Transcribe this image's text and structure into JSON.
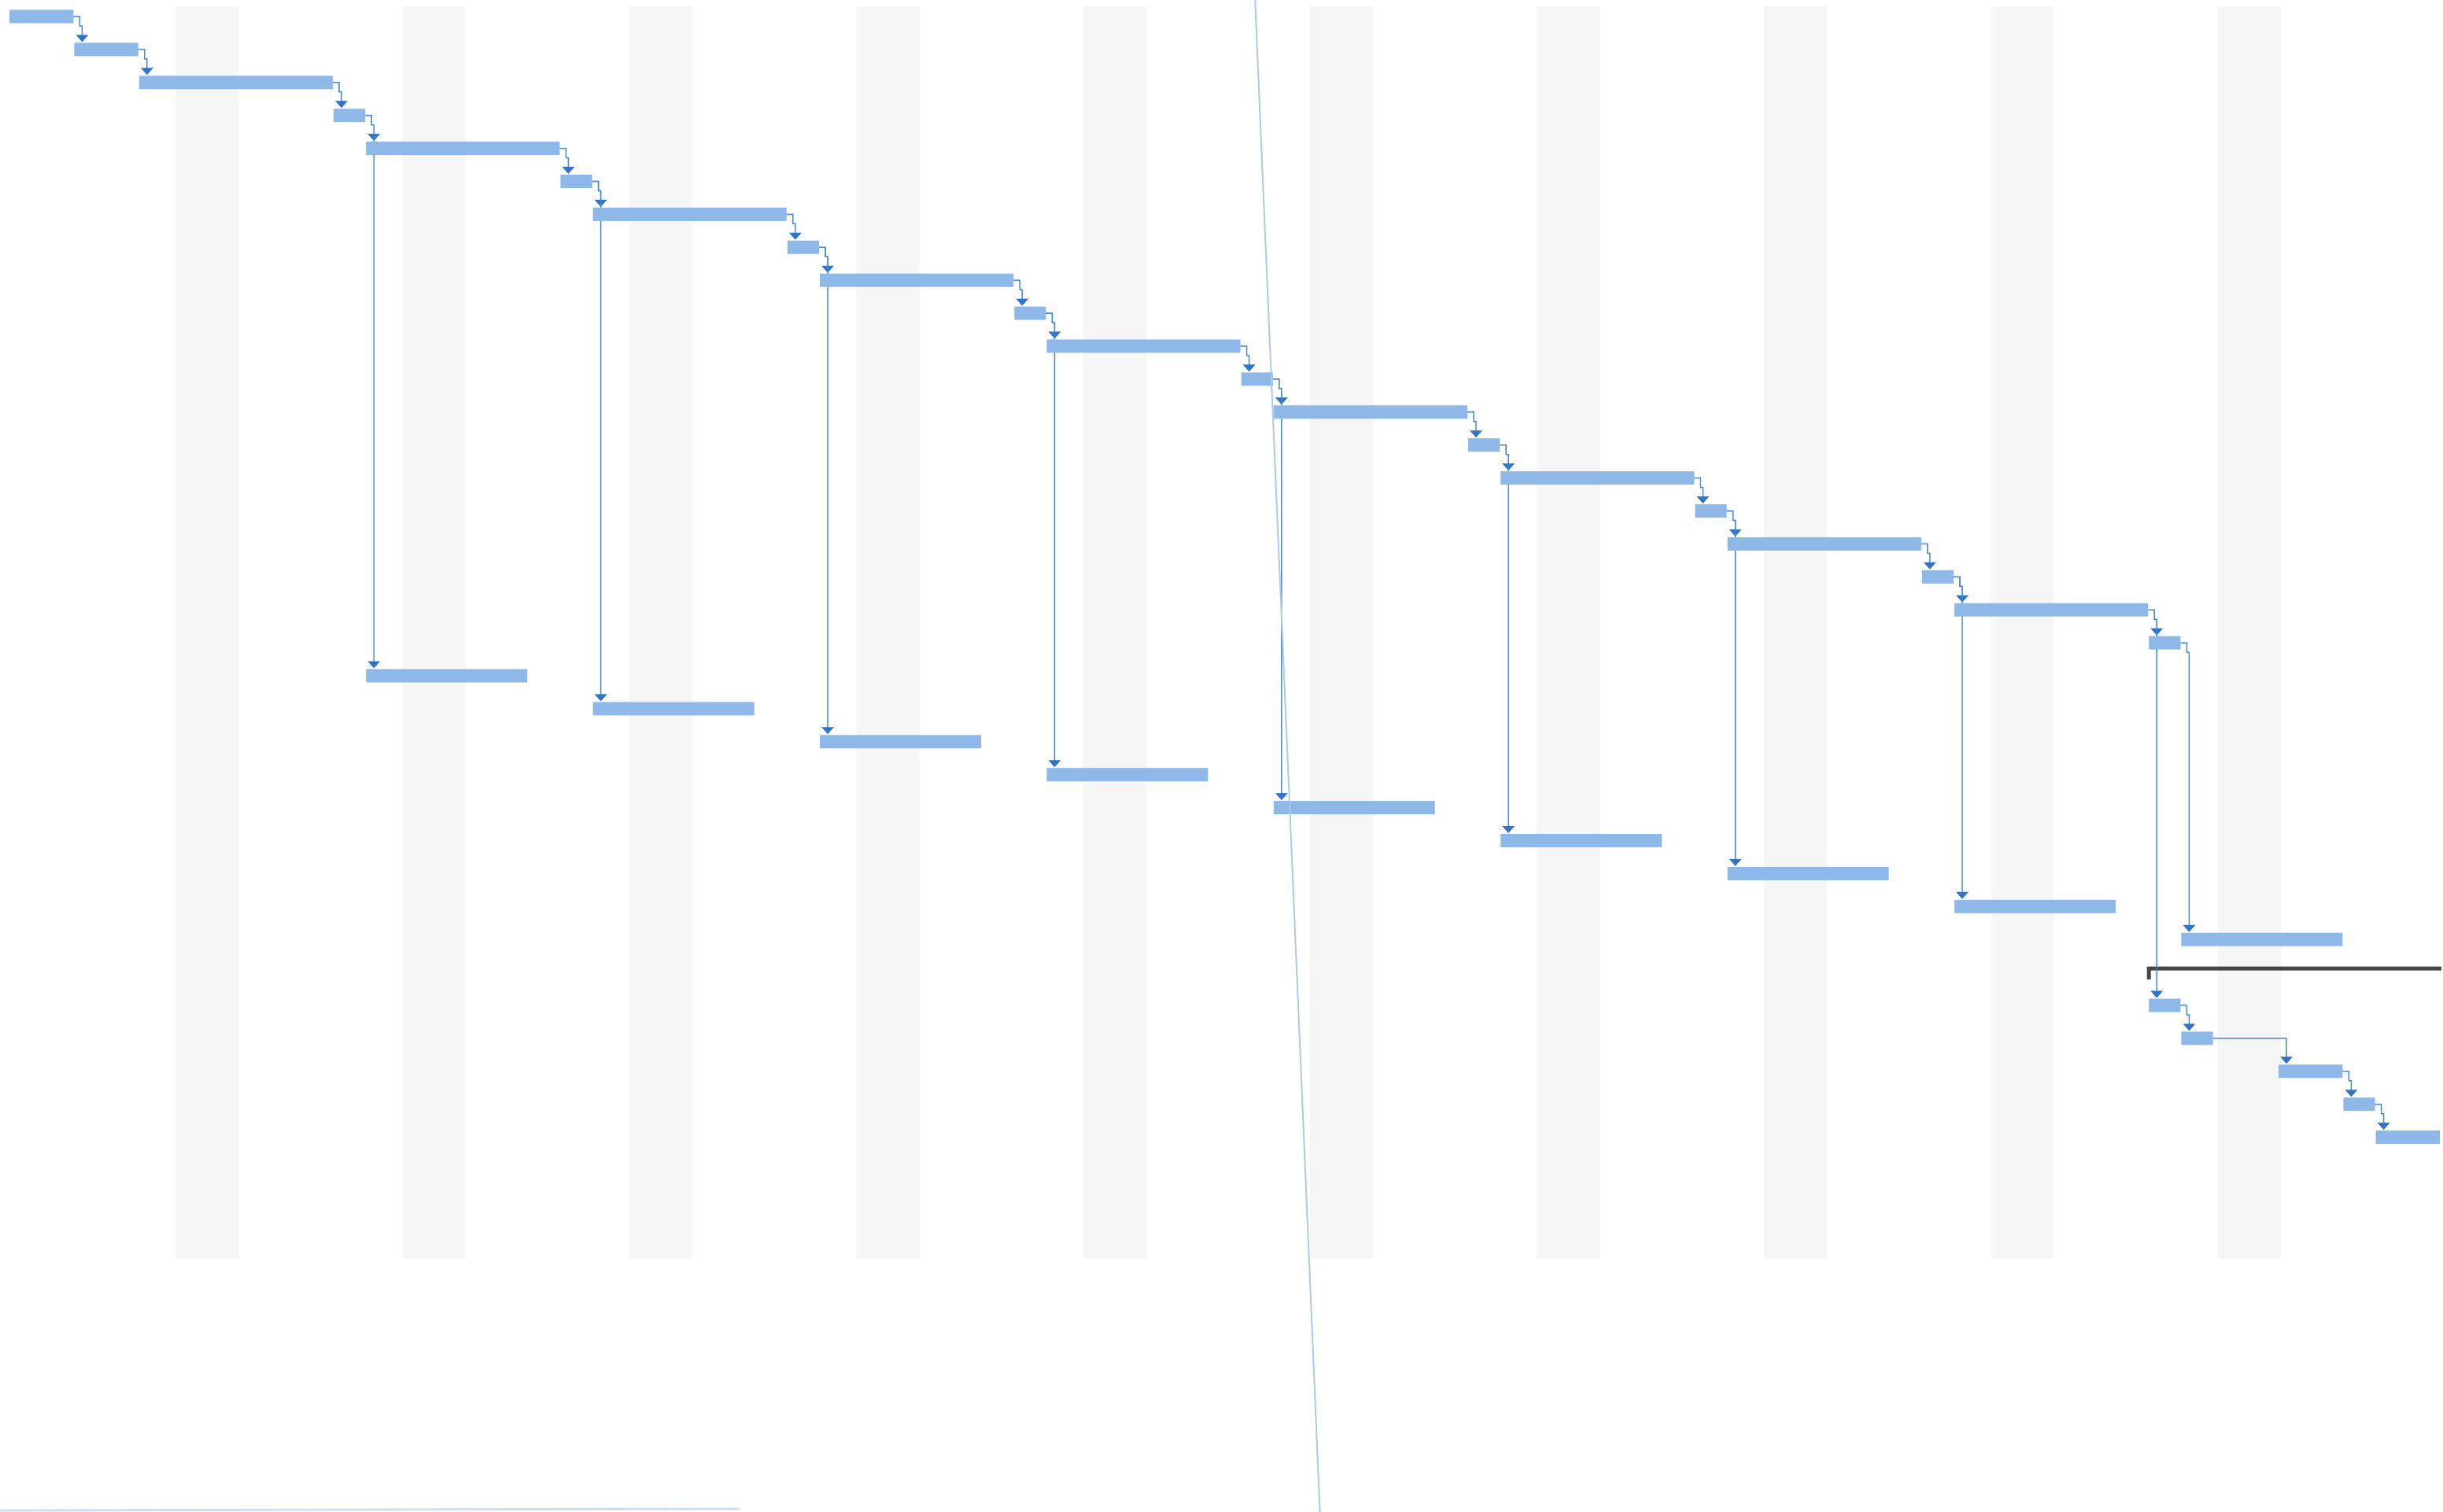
{
  "chart_data": {
    "type": "gantt",
    "title": "",
    "x_unit": "day",
    "time_axis": [
      0,
      77
    ],
    "weekend_bands": [
      5,
      12,
      19,
      26,
      33,
      40,
      47,
      54,
      61,
      68
    ],
    "today_line": [
      38.5,
      40.5
    ],
    "colors": {
      "bar": "#8db8e8",
      "link": "#3f86d5",
      "arrow": "#2f74c6",
      "weekend": "#f6f6f6",
      "today": "#a8cbe8",
      "summary": "#454545",
      "background": "#ffffff"
    },
    "tasks": [
      {
        "row": 0,
        "start": 0,
        "end": 2
      },
      {
        "row": 1,
        "start": 2,
        "end": 4
      },
      {
        "row": 2,
        "start": 4,
        "end": 10
      },
      {
        "row": 3,
        "start": 10,
        "end": 11
      },
      {
        "row": 4,
        "start": 11,
        "end": 17
      },
      {
        "row": 5,
        "start": 17,
        "end": 18
      },
      {
        "row": 6,
        "start": 18,
        "end": 24
      },
      {
        "row": 7,
        "start": 24,
        "end": 25
      },
      {
        "row": 8,
        "start": 25,
        "end": 31
      },
      {
        "row": 9,
        "start": 31,
        "end": 32
      },
      {
        "row": 10,
        "start": 32,
        "end": 38
      },
      {
        "row": 11,
        "start": 38,
        "end": 39
      },
      {
        "row": 12,
        "start": 39,
        "end": 45
      },
      {
        "row": 13,
        "start": 45,
        "end": 46
      },
      {
        "row": 14,
        "start": 46,
        "end": 52
      },
      {
        "row": 15,
        "start": 52,
        "end": 53
      },
      {
        "row": 16,
        "start": 53,
        "end": 59
      },
      {
        "row": 17,
        "start": 59,
        "end": 60
      },
      {
        "row": 18,
        "start": 60,
        "end": 66
      },
      {
        "row": 19,
        "start": 66,
        "end": 67
      },
      {
        "row": 20,
        "start": 11,
        "end": 16
      },
      {
        "row": 21,
        "start": 18,
        "end": 23
      },
      {
        "row": 22,
        "start": 25,
        "end": 30
      },
      {
        "row": 23,
        "start": 32,
        "end": 37
      },
      {
        "row": 24,
        "start": 39,
        "end": 44
      },
      {
        "row": 25,
        "start": 46,
        "end": 51
      },
      {
        "row": 26,
        "start": 53,
        "end": 58
      },
      {
        "row": 27,
        "start": 60,
        "end": 65
      },
      {
        "row": 28,
        "start": 67,
        "end": 72
      },
      {
        "row": 30,
        "start": 66,
        "end": 67
      },
      {
        "row": 31,
        "start": 67,
        "end": 68
      },
      {
        "row": 32,
        "start": 70,
        "end": 72
      },
      {
        "row": 33,
        "start": 72,
        "end": 73
      },
      {
        "row": 34,
        "start": 73,
        "end": 75
      }
    ],
    "summaries": [
      {
        "row": 29,
        "start": 66,
        "end": 75.2
      }
    ],
    "links": [
      {
        "from": 0,
        "to": 1
      },
      {
        "from": 1,
        "to": 2
      },
      {
        "from": 2,
        "to": 3
      },
      {
        "from": 3,
        "to": 4
      },
      {
        "from": 4,
        "to": 5
      },
      {
        "from": 5,
        "to": 6
      },
      {
        "from": 6,
        "to": 7
      },
      {
        "from": 7,
        "to": 8
      },
      {
        "from": 8,
        "to": 9
      },
      {
        "from": 9,
        "to": 10
      },
      {
        "from": 10,
        "to": 11
      },
      {
        "from": 11,
        "to": 12
      },
      {
        "from": 12,
        "to": 13
      },
      {
        "from": 13,
        "to": 14
      },
      {
        "from": 14,
        "to": 15
      },
      {
        "from": 15,
        "to": 16
      },
      {
        "from": 16,
        "to": 17
      },
      {
        "from": 17,
        "to": 18
      },
      {
        "from": 18,
        "to": 19
      },
      {
        "from": 3,
        "to": 20
      },
      {
        "from": 5,
        "to": 21
      },
      {
        "from": 7,
        "to": 22
      },
      {
        "from": 9,
        "to": 23
      },
      {
        "from": 11,
        "to": 24
      },
      {
        "from": 13,
        "to": 25
      },
      {
        "from": 15,
        "to": 26
      },
      {
        "from": 17,
        "to": 27
      },
      {
        "from": 19,
        "to": 28
      },
      {
        "from": 18,
        "to": 30
      },
      {
        "from": 30,
        "to": 31
      },
      {
        "from": 31,
        "to": 32
      },
      {
        "from": 32,
        "to": 33
      },
      {
        "from": 33,
        "to": 34
      }
    ]
  }
}
